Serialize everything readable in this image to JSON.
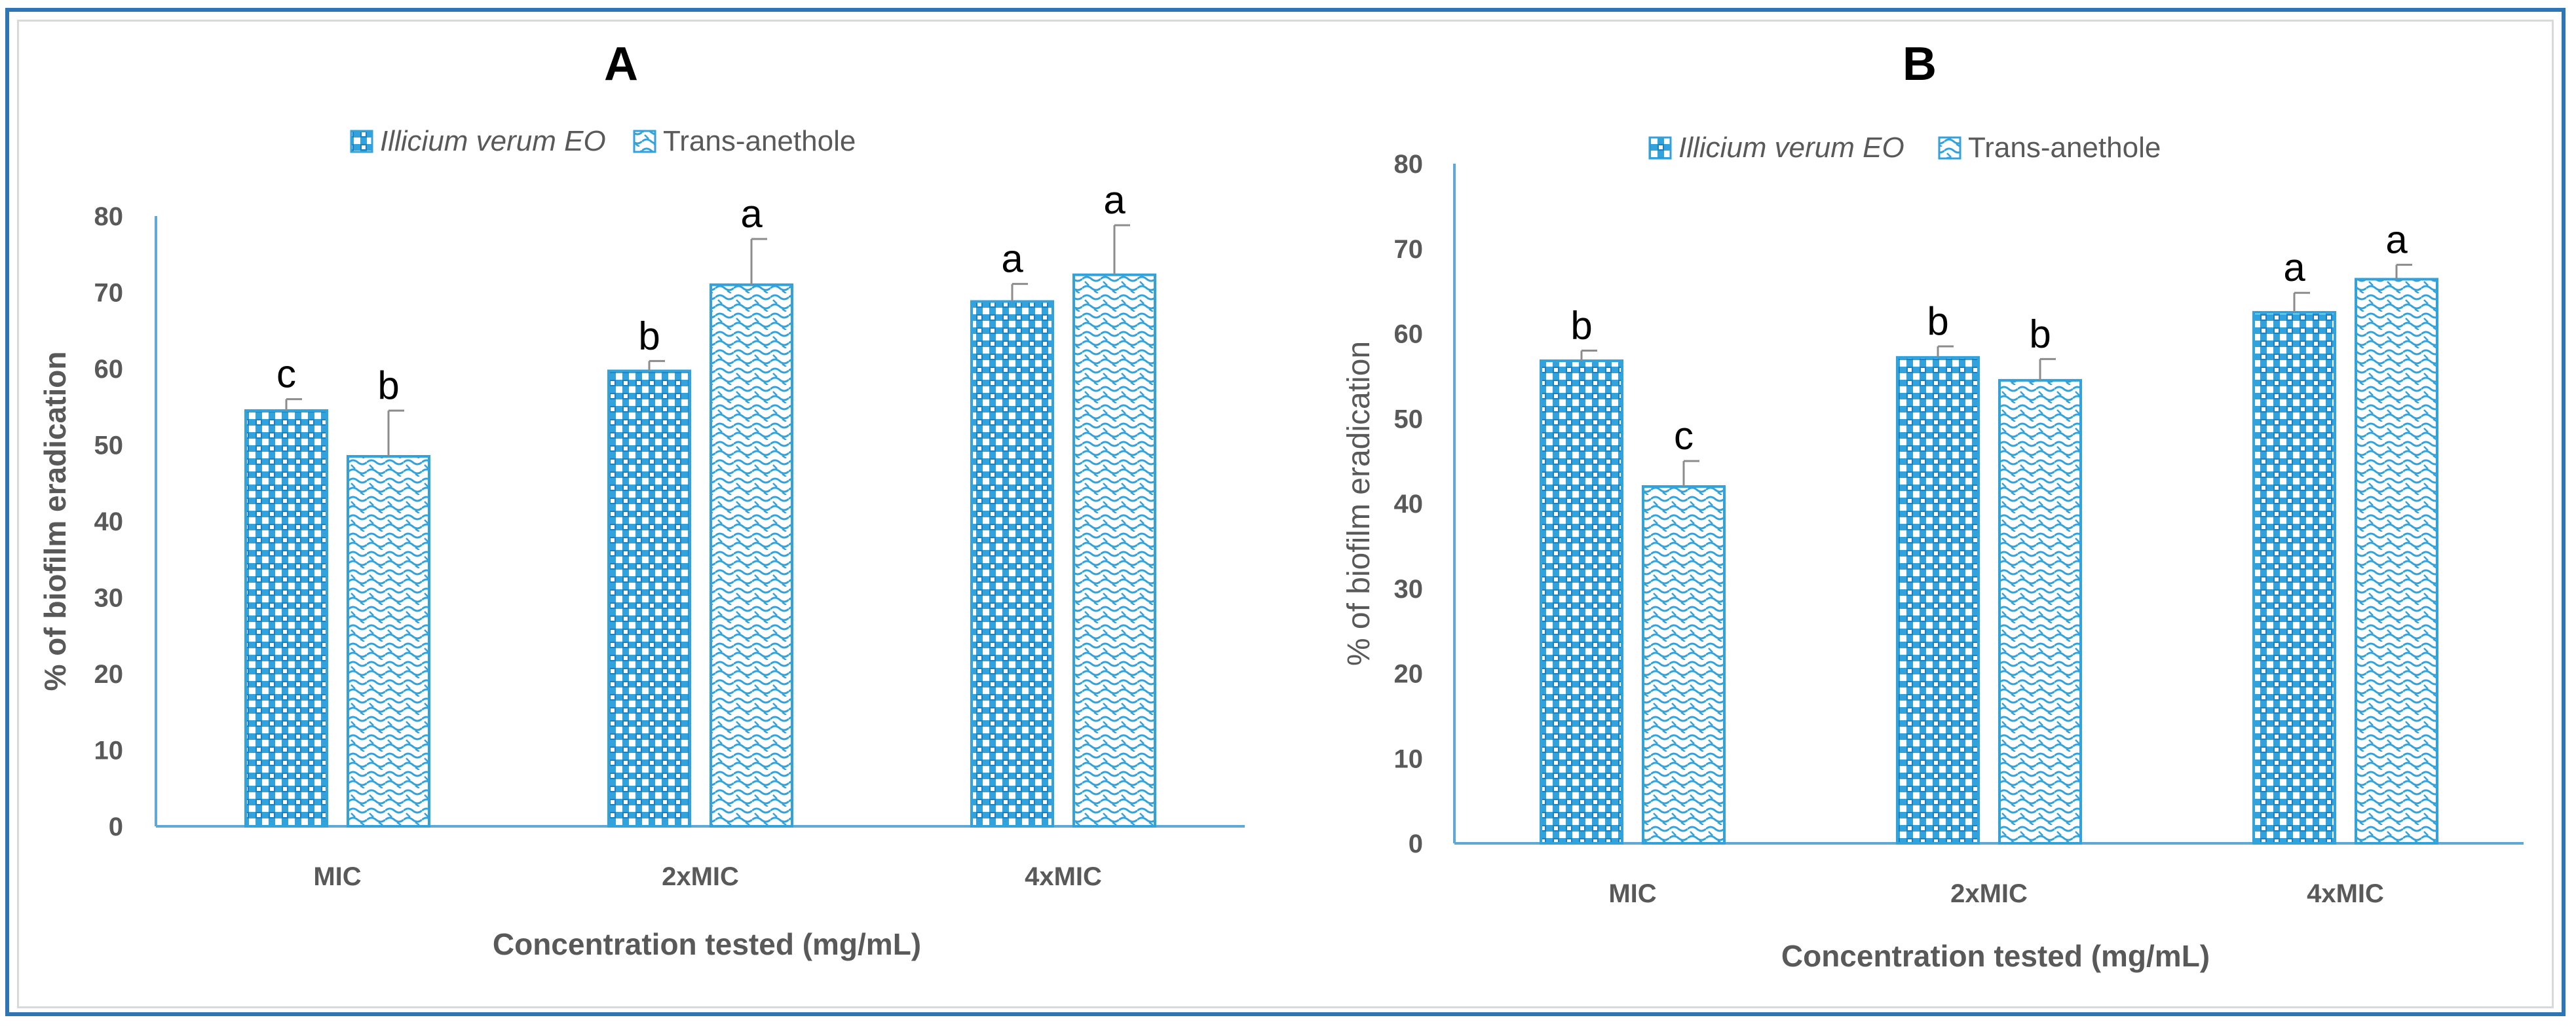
{
  "colors": {
    "accent": "#2e75b6",
    "bar": "#31a2dc",
    "axis": "#5fa9d9",
    "text": "#595959"
  },
  "chart_data": [
    {
      "type": "bar",
      "title": "A",
      "categories": [
        "MIC",
        "2xMIC",
        "4xMIC"
      ],
      "xlabel": "Concentration tested (mg/mL)",
      "ylabel": "% of biofilm eradication",
      "ylim": [
        0,
        80
      ],
      "yticks": [
        0,
        10,
        20,
        30,
        40,
        50,
        60,
        70,
        80
      ],
      "legend_position": "top-center",
      "series": [
        {
          "name": "Illicium verum EO",
          "pattern": "checker",
          "values": [
            54.5,
            59.7,
            68.8
          ],
          "errors": [
            1.5,
            1.3,
            2.3
          ],
          "labels": [
            "c",
            "b",
            "a"
          ]
        },
        {
          "name": "Trans-anethole",
          "pattern": "wave",
          "values": [
            48.5,
            71.0,
            72.3
          ],
          "errors": [
            6.0,
            6.0,
            6.5
          ],
          "labels": [
            "b",
            "a",
            "a"
          ]
        }
      ]
    },
    {
      "type": "bar",
      "title": "B",
      "categories": [
        "MIC",
        "2xMIC",
        "4xMIC"
      ],
      "xlabel": "Concentration tested (mg/mL)",
      "ylabel": "% of biofilm eradication",
      "ylim": [
        0,
        80
      ],
      "yticks": [
        0,
        10,
        20,
        30,
        40,
        50,
        60,
        70,
        80
      ],
      "legend_position": "top-center",
      "series": [
        {
          "name": "Illicium verum EO",
          "pattern": "checker",
          "values": [
            56.8,
            57.2,
            62.5
          ],
          "errors": [
            1.2,
            1.3,
            2.3
          ],
          "labels": [
            "b",
            "b",
            "a"
          ]
        },
        {
          "name": "Trans-anethole",
          "pattern": "wave",
          "values": [
            42.0,
            54.5,
            66.4
          ],
          "errors": [
            3.0,
            2.5,
            1.7
          ],
          "labels": [
            "c",
            "b",
            "a"
          ]
        }
      ]
    }
  ]
}
